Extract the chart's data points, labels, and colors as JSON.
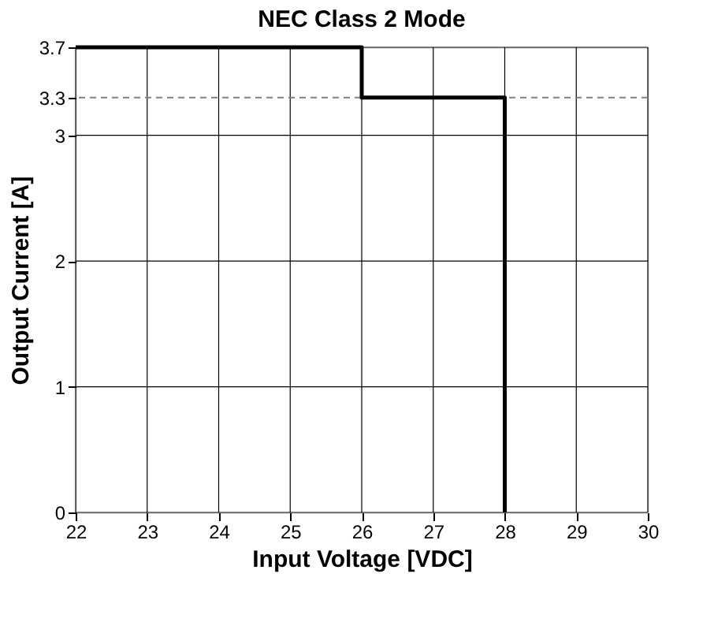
{
  "chart_data": {
    "type": "step",
    "title": "NEC Class 2 Mode",
    "xlabel": "Input Voltage [VDC]",
    "ylabel": "Output Current [A]",
    "x": [
      22,
      26,
      28,
      28
    ],
    "series": [
      {
        "color": "#000000",
        "values": [
          3.7,
          3.3,
          3.3,
          0
        ]
      }
    ],
    "xlim": [
      22,
      30
    ],
    "xticks": [
      22,
      23,
      24,
      25,
      26,
      27,
      28,
      29,
      30
    ],
    "ylim": [
      0,
      3.7
    ],
    "yticks": [
      0,
      1,
      2,
      3,
      3.3,
      3.7
    ],
    "ref_lines": [
      {
        "axis": "y",
        "value": 3.3,
        "color": "#808080",
        "line_style": "dashed"
      }
    ],
    "grid": true
  }
}
